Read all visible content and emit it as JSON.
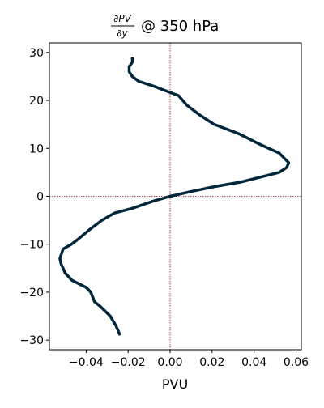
{
  "chart_data": {
    "type": "line",
    "title": {
      "fraction_numerator": "∂PV",
      "fraction_denominator": "∂y",
      "suffix": "@ 350 hPa"
    },
    "xlabel": "PVU",
    "ylabel": "",
    "xlim": [
      -0.0575,
      0.0625
    ],
    "ylim": [
      -32,
      32
    ],
    "xticks": [
      -0.04,
      -0.02,
      0.0,
      0.02,
      0.04,
      0.06
    ],
    "xtick_labels": [
      "−0.04",
      "−0.02",
      "0.00",
      "0.02",
      "0.04",
      "0.06"
    ],
    "yticks": [
      -30,
      -20,
      -10,
      0,
      10,
      20,
      30
    ],
    "ytick_labels": [
      "−30",
      "−20",
      "−10",
      "0",
      "10",
      "20",
      "30"
    ],
    "grid": false,
    "reference_lines": {
      "x": 0,
      "y": 0,
      "color": "#8b1a1a",
      "style": "dotted"
    },
    "series": [
      {
        "color": "#00263b",
        "points": [
          [
            -0.0238,
            -29
          ],
          [
            -0.0258,
            -27
          ],
          [
            -0.0285,
            -25
          ],
          [
            -0.0332,
            -23
          ],
          [
            -0.036,
            -22
          ],
          [
            -0.0378,
            -20
          ],
          [
            -0.04,
            -19
          ],
          [
            -0.0468,
            -17.5
          ],
          [
            -0.05,
            -16
          ],
          [
            -0.052,
            -14
          ],
          [
            -0.0525,
            -13
          ],
          [
            -0.051,
            -11
          ],
          [
            -0.047,
            -10
          ],
          [
            -0.044,
            -9
          ],
          [
            -0.0385,
            -7
          ],
          [
            -0.0325,
            -5
          ],
          [
            -0.0265,
            -3.5
          ],
          [
            -0.018,
            -2.5
          ],
          [
            -0.008,
            -1
          ],
          [
            0.0,
            0
          ],
          [
            0.01,
            1
          ],
          [
            0.021,
            2
          ],
          [
            0.034,
            3
          ],
          [
            0.043,
            4
          ],
          [
            0.052,
            5
          ],
          [
            0.0555,
            6
          ],
          [
            0.0565,
            7
          ],
          [
            0.052,
            9
          ],
          [
            0.042,
            11
          ],
          [
            0.033,
            13
          ],
          [
            0.021,
            15
          ],
          [
            0.014,
            17
          ],
          [
            0.008,
            19
          ],
          [
            0.004,
            21
          ],
          [
            -0.002,
            22
          ],
          [
            -0.008,
            23
          ],
          [
            -0.015,
            24
          ],
          [
            -0.018,
            25
          ],
          [
            -0.0195,
            26
          ],
          [
            -0.0195,
            27
          ],
          [
            -0.018,
            28
          ],
          [
            -0.018,
            29
          ]
        ]
      }
    ]
  }
}
